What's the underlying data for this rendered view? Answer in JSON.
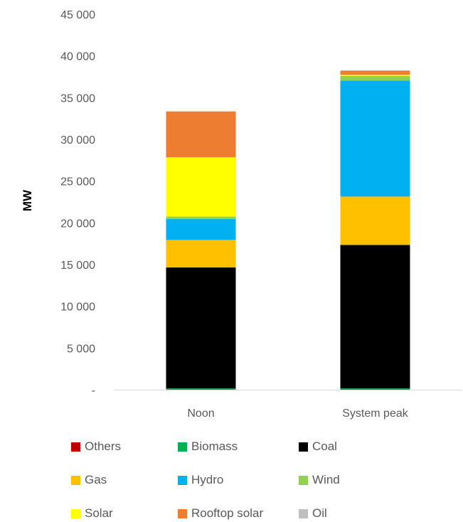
{
  "chart_data": {
    "type": "bar",
    "stacked": true,
    "title": "",
    "xlabel": "",
    "ylabel": "MW",
    "ylim": [
      0,
      45000
    ],
    "y_ticks": [
      "-",
      "5 000",
      "10 000",
      "15 000",
      "20 000",
      "25 000",
      "30 000",
      "35 000",
      "40 000",
      "45 000"
    ],
    "categories": [
      "Noon",
      "System peak"
    ],
    "grid": false,
    "legend_position": "bottom",
    "series": [
      {
        "name": "Others",
        "color": "#C00000",
        "values": [
          0,
          0
        ]
      },
      {
        "name": "Biomass",
        "color": "#00B050",
        "values": [
          150,
          150
        ]
      },
      {
        "name": "Coal",
        "color": "#000000",
        "values": [
          14500,
          17200
        ]
      },
      {
        "name": "Gas",
        "color": "#FFC000",
        "values": [
          3300,
          5800
        ]
      },
      {
        "name": "Hydro",
        "color": "#00B0F0",
        "values": [
          2500,
          13900
        ]
      },
      {
        "name": "Wind",
        "color": "#92D050",
        "values": [
          300,
          550
        ]
      },
      {
        "name": "Solar",
        "color": "#FFFF00",
        "values": [
          7100,
          150
        ]
      },
      {
        "name": "Rooftop solar",
        "color": "#ED7D31",
        "values": [
          5500,
          500
        ]
      },
      {
        "name": "Oil",
        "color": "#BFBFBF",
        "values": [
          0,
          0
        ]
      }
    ]
  }
}
